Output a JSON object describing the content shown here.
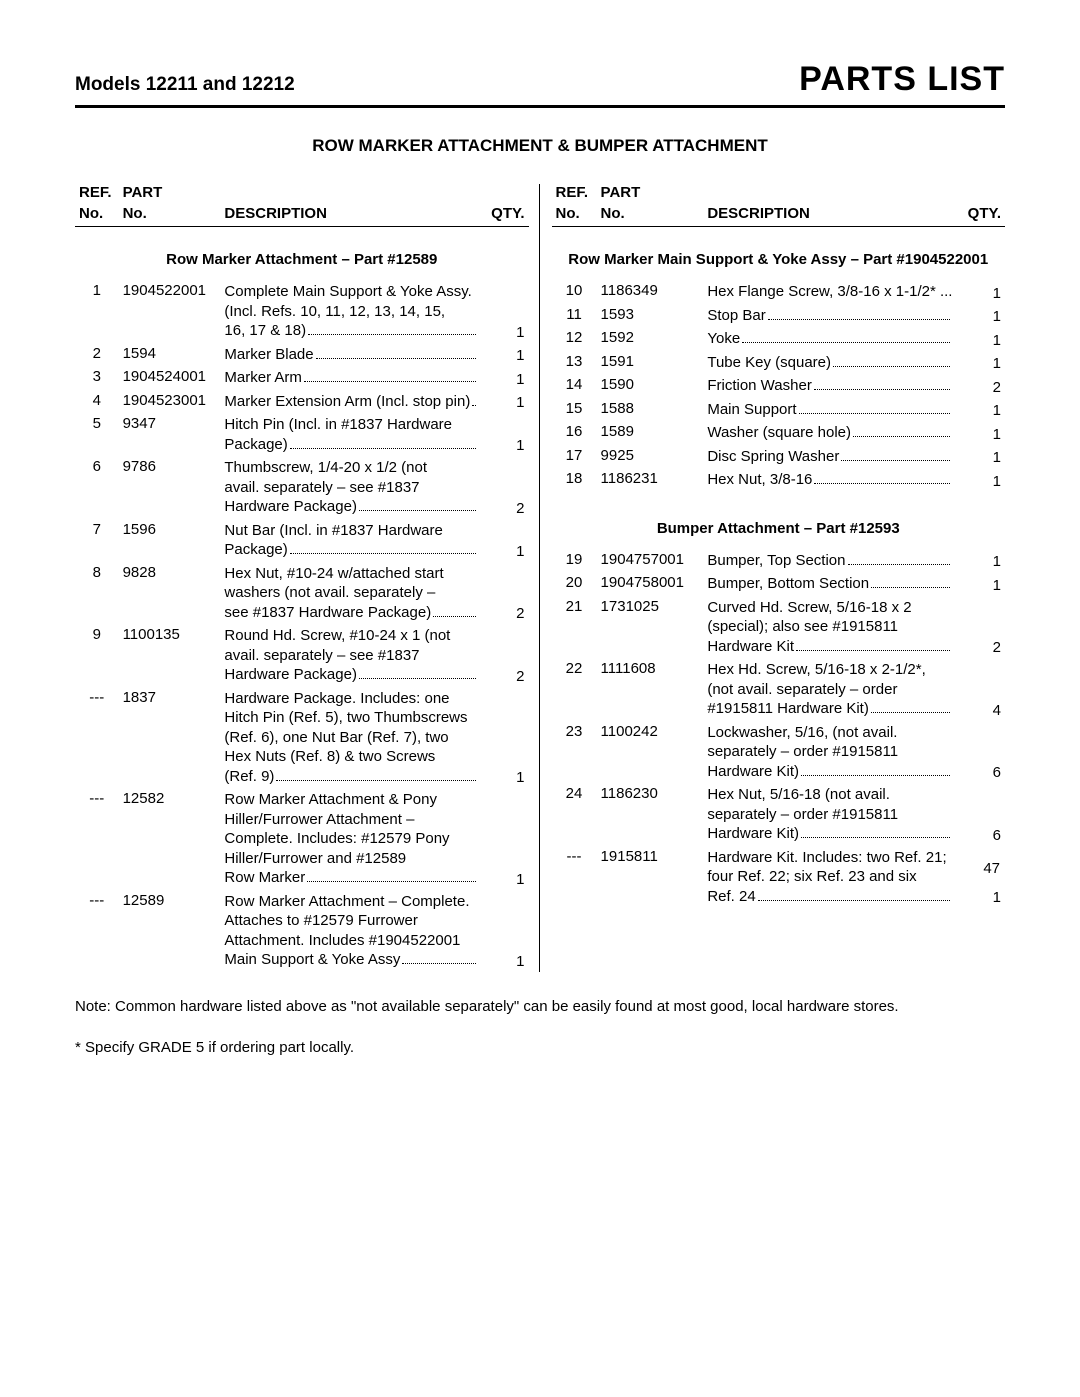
{
  "header": {
    "models": "Models 12211 and 12212",
    "title": "PARTS LIST"
  },
  "subtitle": "ROW MARKER ATTACHMENT & BUMPER ATTACHMENT",
  "columnHeaders": {
    "ref1": "REF.",
    "ref2": "No.",
    "part1": "PART",
    "part2": "No.",
    "desc": "DESCRIPTION",
    "qty": "QTY."
  },
  "left": {
    "sections": [
      {
        "title": "Row Marker Attachment – Part #12589",
        "rows": [
          {
            "ref": "1",
            "part": "1904522001",
            "lines": [
              "Complete Main Support & Yoke Assy.",
              "(Incl. Refs. 10, 11, 12, 13, 14, 15,"
            ],
            "last": "16, 17 & 18)",
            "qty": "1"
          },
          {
            "ref": "2",
            "part": "1594",
            "last": "Marker Blade",
            "qty": "1"
          },
          {
            "ref": "3",
            "part": "1904524001",
            "last": "Marker Arm",
            "qty": "1"
          },
          {
            "ref": "4",
            "part": "1904523001",
            "last": "Marker Extension Arm (Incl. stop pin)",
            "qty": "1"
          },
          {
            "ref": "5",
            "part": "9347",
            "lines": [
              "Hitch Pin (Incl. in #1837 Hardware"
            ],
            "last": "Package)",
            "qty": "1"
          },
          {
            "ref": "6",
            "part": "9786",
            "lines": [
              "Thumbscrew, 1/4-20 x 1/2 (not",
              "avail. separately – see #1837"
            ],
            "last": "Hardware Package)",
            "qty": "2"
          },
          {
            "ref": "7",
            "part": "1596",
            "lines": [
              "Nut Bar (Incl. in #1837 Hardware"
            ],
            "last": "Package)",
            "qty": "1"
          },
          {
            "ref": "8",
            "part": "9828",
            "lines": [
              "Hex Nut, #10-24 w/attached start",
              "washers (not avail. separately –"
            ],
            "last": "see #1837 Hardware Package)",
            "qty": "2"
          },
          {
            "ref": "9",
            "part": "1100135",
            "lines": [
              "Round Hd. Screw, #10-24 x 1 (not",
              "avail. separately – see #1837"
            ],
            "last": "Hardware Package)",
            "qty": "2"
          },
          {
            "ref": "---",
            "part": "1837",
            "lines": [
              "Hardware Package. Includes: one",
              "Hitch Pin (Ref. 5), two Thumbscrews",
              "(Ref. 6), one Nut Bar (Ref. 7), two",
              "Hex Nuts (Ref. 8) & two Screws"
            ],
            "last": "(Ref. 9)",
            "qty": "1"
          },
          {
            "ref": "---",
            "part": "12582",
            "lines": [
              "Row Marker Attachment & Pony",
              "Hiller/Furrower Attachment –",
              "Complete.  Includes:  #12579 Pony",
              "Hiller/Furrower and #12589"
            ],
            "last": "Row Marker",
            "qty": "1"
          },
          {
            "ref": "---",
            "part": "12589",
            "lines": [
              "Row Marker Attachment – Complete.",
              "Attaches to #12579 Furrower",
              "Attachment. Includes #1904522001"
            ],
            "last": "Main Support & Yoke Assy",
            "qty": "1"
          }
        ]
      }
    ]
  },
  "right": {
    "sections": [
      {
        "title": "Row Marker Main Support & Yoke Assy – Part #1904522001",
        "rows": [
          {
            "ref": "10",
            "part": "1186349",
            "last": "Hex Flange Screw, 3/8-16 x 1-1/2* ...",
            "qty": "1",
            "nodots": true
          },
          {
            "ref": "11",
            "part": "1593",
            "last": "Stop Bar",
            "qty": "1"
          },
          {
            "ref": "12",
            "part": "1592",
            "last": "Yoke",
            "qty": "1"
          },
          {
            "ref": "13",
            "part": "1591",
            "last": "Tube Key (square)",
            "qty": "1"
          },
          {
            "ref": "14",
            "part": "1590",
            "last": "Friction Washer",
            "qty": "2"
          },
          {
            "ref": "15",
            "part": "1588",
            "last": "Main Support",
            "qty": "1"
          },
          {
            "ref": "16",
            "part": "1589",
            "last": "Washer (square hole)",
            "qty": "1"
          },
          {
            "ref": "17",
            "part": "9925",
            "last": "Disc Spring Washer",
            "qty": "1"
          },
          {
            "ref": "18",
            "part": "1186231",
            "last": "Hex Nut, 3/8-16",
            "qty": "1"
          }
        ]
      },
      {
        "title": "Bumper Attachment – Part #12593",
        "rows": [
          {
            "ref": "19",
            "part": "1904757001",
            "last": "Bumper, Top Section",
            "qty": "1"
          },
          {
            "ref": "20",
            "part": "1904758001",
            "last": "Bumper, Bottom Section",
            "qty": "1"
          },
          {
            "ref": "21",
            "part": "1731025",
            "lines": [
              "Curved Hd. Screw, 5/16-18 x 2",
              "(special); also see #1915811"
            ],
            "last": "Hardware Kit",
            "qty": "2"
          },
          {
            "ref": "22",
            "part": "1111608",
            "lines": [
              "Hex Hd. Screw, 5/16-18 x 2-1/2*,",
              "(not avail. separately – order"
            ],
            "last": "#1915811 Hardware Kit)",
            "qty": "4"
          },
          {
            "ref": "23",
            "part": "1100242",
            "lines": [
              "Lockwasher, 5/16, (not avail.",
              "separately – order #1915811"
            ],
            "last": "Hardware Kit)",
            "qty": "6"
          },
          {
            "ref": "24",
            "part": "1186230",
            "lines": [
              "Hex Nut, 5/16-18  (not avail.",
              "separately – order #1915811"
            ],
            "last": "Hardware Kit)",
            "qty": "6"
          },
          {
            "ref": "---",
            "part": "1915811",
            "lines": [
              "Hardware Kit.  Includes: two Ref. 21;",
              "four Ref. 22; six Ref. 23 and six"
            ],
            "last": "Ref. 24",
            "qty": "1"
          }
        ]
      }
    ]
  },
  "footnotes": {
    "note": "Note: Common hardware listed above as \"not available separately\" can be easily found at most good, local hardware stores.",
    "grade": "*  Specify GRADE 5 if ordering part locally."
  },
  "pageNumber": "47"
}
